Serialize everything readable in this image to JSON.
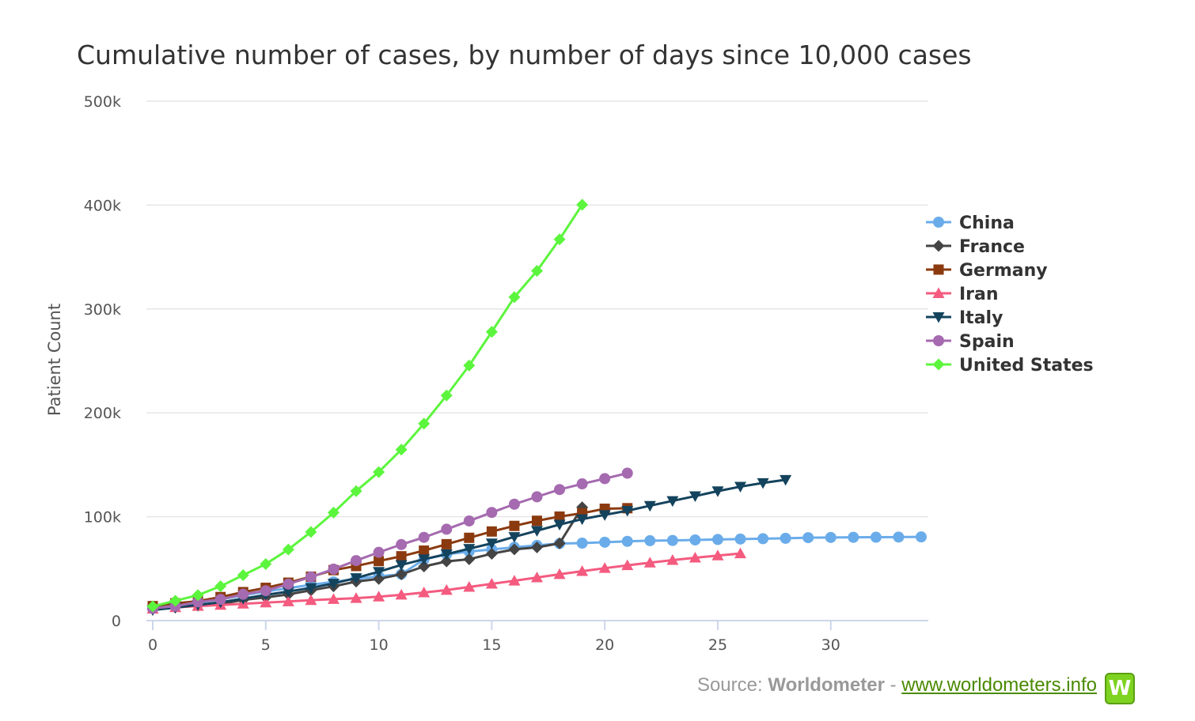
{
  "chart_data": {
    "type": "line",
    "title": "Cumulative number of cases, by number of days since 10,000 cases",
    "xlabel": "",
    "ylabel": "Patient Count",
    "xlim": [
      0,
      34
    ],
    "ylim": [
      0,
      500000
    ],
    "x_ticks": [
      0,
      5,
      10,
      15,
      20,
      25,
      30
    ],
    "y_ticks": [
      0,
      100000,
      200000,
      300000,
      400000,
      500000
    ],
    "y_tick_labels": [
      "0",
      "100k",
      "200k",
      "300k",
      "400k",
      "500k"
    ],
    "grid": true,
    "legend_position": "right",
    "series": [
      {
        "name": "China",
        "color": "#6aacea",
        "marker": "circle",
        "values": [
          11791,
          14380,
          17205,
          20438,
          24324,
          28018,
          31161,
          34546,
          37198,
          40171,
          42638,
          44653,
          58761,
          63851,
          66492,
          68500,
          70548,
          72436,
          74185,
          74576,
          75465,
          76288,
          76936,
          77150,
          77658,
          78064,
          78497,
          78824,
          79251,
          79824,
          80026,
          80151,
          80270,
          80409,
          80552
        ]
      },
      {
        "name": "France",
        "color": "#444444",
        "marker": "diamond",
        "values": [
          11130,
          12612,
          14459,
          16018,
          19856,
          22302,
          25233,
          29155,
          32964,
          37575,
          40174,
          44550,
          52128,
          56989,
          59105,
          64338,
          68605,
          70478,
          74390,
          109069
        ]
      },
      {
        "name": "Germany",
        "color": "#8b3a0f",
        "marker": "square",
        "values": [
          13957,
          16662,
          18610,
          22672,
          27436,
          31554,
          36508,
          42288,
          48582,
          52547,
          57298,
          61913,
          67366,
          73522,
          79696,
          85778,
          91159,
          96092,
          100123,
          103374,
          107663,
          108202
        ]
      },
      {
        "name": "Iran",
        "color": "#f45b7f",
        "marker": "triangle-up",
        "values": [
          11364,
          12729,
          13938,
          14991,
          16169,
          17361,
          18407,
          19644,
          20610,
          21638,
          23049,
          24811,
          27017,
          29406,
          32332,
          35408,
          38309,
          41495,
          44606,
          47593,
          50468,
          53183,
          55743,
          58226,
          60500,
          62589,
          64586
        ]
      },
      {
        "name": "Italy",
        "color": "#14435d",
        "marker": "triangle-down",
        "values": [
          10149,
          12462,
          15113,
          17660,
          21157,
          24747,
          27980,
          31506,
          35713,
          41035,
          47021,
          53578,
          59138,
          63927,
          69176,
          74386,
          80589,
          86498,
          92472,
          97689,
          101739,
          105792,
          110574,
          115242,
          119827,
          124632,
          128948,
          132547,
          135586
        ]
      },
      {
        "name": "Spain",
        "color": "#a56aaf",
        "marker": "circle",
        "values": [
          11748,
          13910,
          17963,
          20410,
          25374,
          28768,
          35136,
          42058,
          49515,
          57786,
          65719,
          73235,
          80110,
          87956,
          95923,
          104118,
          112065,
          119199,
          126168,
          131646,
          136675,
          141942
        ]
      },
      {
        "name": "United States",
        "color": "#5cf53d",
        "marker": "diamond",
        "values": [
          13677,
          19100,
          24500,
          33073,
          43734,
          54453,
          68440,
          85356,
          103942,
          124665,
          143025,
          164620,
          189618,
          216722,
          245540,
          277953,
          311357,
          336673,
          367004,
          400335
        ]
      }
    ]
  },
  "source": {
    "prefix": "Source: ",
    "name": "Worldometer",
    "separator": " - ",
    "link": "www.worldometers.info"
  },
  "logo": {
    "letter": "W"
  }
}
